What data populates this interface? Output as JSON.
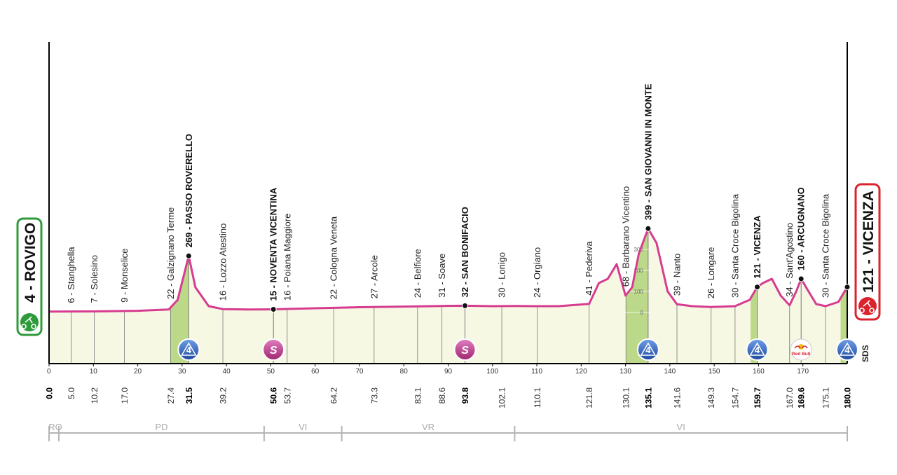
{
  "start": {
    "altitude": 4,
    "name": "ROVIGO",
    "label": "4 - ROVIGO",
    "color": "#2e9b3a"
  },
  "finish": {
    "altitude": 121,
    "name": "VICENZA",
    "label": "121 - VICENZA",
    "color": "#d9232d"
  },
  "colors": {
    "profile_line": "#d63c8f",
    "profile_fill": "#f6f8e4",
    "climb_fill": "#bcd98a",
    "axis": "#000000",
    "guide": "#777777"
  },
  "chart_data": {
    "type": "area",
    "xlim": [
      0,
      180
    ],
    "x_ticks": [
      "0",
      "10",
      "20",
      "30",
      "40",
      "50",
      "60",
      "70",
      "80",
      "90",
      "100",
      "110",
      "120",
      "130",
      "140",
      "150",
      "160",
      "170"
    ],
    "profile": [
      [
        0,
        4
      ],
      [
        10,
        5
      ],
      [
        20,
        8
      ],
      [
        27,
        14
      ],
      [
        29,
        60
      ],
      [
        31.5,
        269
      ],
      [
        33,
        120
      ],
      [
        36,
        30
      ],
      [
        39.2,
        16
      ],
      [
        45,
        14
      ],
      [
        50.6,
        15
      ],
      [
        60,
        20
      ],
      [
        70,
        25
      ],
      [
        80,
        28
      ],
      [
        88.6,
        31
      ],
      [
        93.8,
        32
      ],
      [
        100,
        30
      ],
      [
        105,
        31
      ],
      [
        110,
        30
      ],
      [
        115,
        30
      ],
      [
        120,
        38
      ],
      [
        121.8,
        41
      ],
      [
        124,
        140
      ],
      [
        126,
        160
      ],
      [
        128,
        230
      ],
      [
        130,
        80
      ],
      [
        131.5,
        120
      ],
      [
        133,
        280
      ],
      [
        135.1,
        399
      ],
      [
        137,
        330
      ],
      [
        139.5,
        100
      ],
      [
        141.6,
        39
      ],
      [
        145,
        30
      ],
      [
        149.3,
        26
      ],
      [
        152,
        28
      ],
      [
        154.7,
        30
      ],
      [
        158,
        60
      ],
      [
        159.7,
        121
      ],
      [
        161,
        140
      ],
      [
        163,
        160
      ],
      [
        165,
        80
      ],
      [
        167,
        34
      ],
      [
        168.5,
        100
      ],
      [
        169.6,
        160
      ],
      [
        171,
        110
      ],
      [
        173,
        40
      ],
      [
        175.1,
        30
      ],
      [
        178,
        50
      ],
      [
        180,
        121
      ]
    ],
    "altitude_scale_ticks": [
      "300",
      "200",
      "100",
      "0"
    ],
    "climb_zones": [
      [
        27.4,
        31.5
      ],
      [
        130.1,
        135.1
      ],
      [
        158.2,
        159.7
      ],
      [
        178.5,
        180
      ]
    ],
    "waypoints": [
      {
        "km": 5.0,
        "km_label": "5.0",
        "label": "6 - Stanghella",
        "bold": false
      },
      {
        "km": 10.2,
        "km_label": "10.2",
        "label": "7 - Solesino",
        "bold": false
      },
      {
        "km": 17.0,
        "km_label": "17.0",
        "label": "9 - Monselice",
        "bold": false
      },
      {
        "km": 27.4,
        "km_label": "27.4",
        "label": "22 - Galzignano Terme",
        "bold": false
      },
      {
        "km": 31.5,
        "km_label": "31.5",
        "label": "269 - PASSO ROVERELLO",
        "bold": true
      },
      {
        "km": 39.2,
        "km_label": "39.2",
        "label": "16 - Lozzo Atestino",
        "bold": false
      },
      {
        "km": 50.6,
        "km_label": "50.6",
        "label": "15 - NOVENTA VICENTINA",
        "bold": true
      },
      {
        "km": 53.7,
        "km_label": "53.7",
        "label": "16 - Poiana Maggiore",
        "bold": false
      },
      {
        "km": 64.2,
        "km_label": "64.2",
        "label": "22 - Cologna Veneta",
        "bold": false
      },
      {
        "km": 73.3,
        "km_label": "73.3",
        "label": "27 - Arcole",
        "bold": false
      },
      {
        "km": 83.1,
        "km_label": "83.1",
        "label": "24 - Belfiore",
        "bold": false
      },
      {
        "km": 88.6,
        "km_label": "88.6",
        "label": "31 - Soave",
        "bold": false
      },
      {
        "km": 93.8,
        "km_label": "93.8",
        "label": "32 - SAN BONIFACIO",
        "bold": true
      },
      {
        "km": 102.1,
        "km_label": "102.1",
        "label": "30 - Lonigo",
        "bold": false
      },
      {
        "km": 110.1,
        "km_label": "110.1",
        "label": "24 - Orgiano",
        "bold": false
      },
      {
        "km": 121.8,
        "km_label": "121.8",
        "label": "41 - Pederiva",
        "bold": false
      },
      {
        "km": 130.1,
        "km_label": "130.1",
        "label": "68 - Barbarano Vicentino",
        "bold": false
      },
      {
        "km": 135.1,
        "km_label": "135.1",
        "label": "399 - SAN GIOVANNI IN MONTE",
        "bold": true
      },
      {
        "km": 141.6,
        "km_label": "141.6",
        "label": "39 - Nanto",
        "bold": false
      },
      {
        "km": 149.3,
        "km_label": "149.3",
        "label": "26 - Longare",
        "bold": false
      },
      {
        "km": 154.7,
        "km_label": "154.7",
        "label": "30 - Santa Croce Bigolina",
        "bold": false
      },
      {
        "km": 159.7,
        "km_label": "159.7",
        "label": "121 - VICENZA",
        "bold": true
      },
      {
        "km": 167.0,
        "km_label": "167.0",
        "label": "34 - Sant'Agostino",
        "bold": false
      },
      {
        "km": 169.6,
        "km_label": "169.6",
        "label": "160 - ARCUGNANO",
        "bold": true
      },
      {
        "km": 175.1,
        "km_label": "175.1",
        "label": "30 - Santa Croce Bigolina",
        "bold": false
      }
    ],
    "km_start_label": "0.0",
    "km_end_label": "180.0",
    "markers": [
      {
        "km": 31.5,
        "type": "gpm",
        "text": "4",
        "color": "#2f63b8"
      },
      {
        "km": 50.6,
        "type": "sprint",
        "text": "S",
        "color": "#c2378f"
      },
      {
        "km": 93.8,
        "type": "sprint",
        "text": "S",
        "color": "#c2378f"
      },
      {
        "km": 135.1,
        "type": "gpm",
        "text": "4",
        "color": "#2f63b8"
      },
      {
        "km": 159.7,
        "type": "gpm",
        "text": "4",
        "color": "#2f63b8"
      },
      {
        "km": 169.6,
        "type": "redbull",
        "text": "Red Bull",
        "color": "#d9232d"
      },
      {
        "km": 180.0,
        "type": "gpm",
        "text": "4",
        "color": "#2f63b8"
      }
    ],
    "sds_label": "SDS",
    "provinces": [
      {
        "code": "RO",
        "from": 0,
        "to": 2.2
      },
      {
        "code": "PD",
        "from": 2.2,
        "to": 48.5
      },
      {
        "code": "VI",
        "from": 48.5,
        "to": 66
      },
      {
        "code": "VR",
        "from": 66,
        "to": 105
      },
      {
        "code": "VI",
        "from": 105,
        "to": 180
      }
    ]
  }
}
